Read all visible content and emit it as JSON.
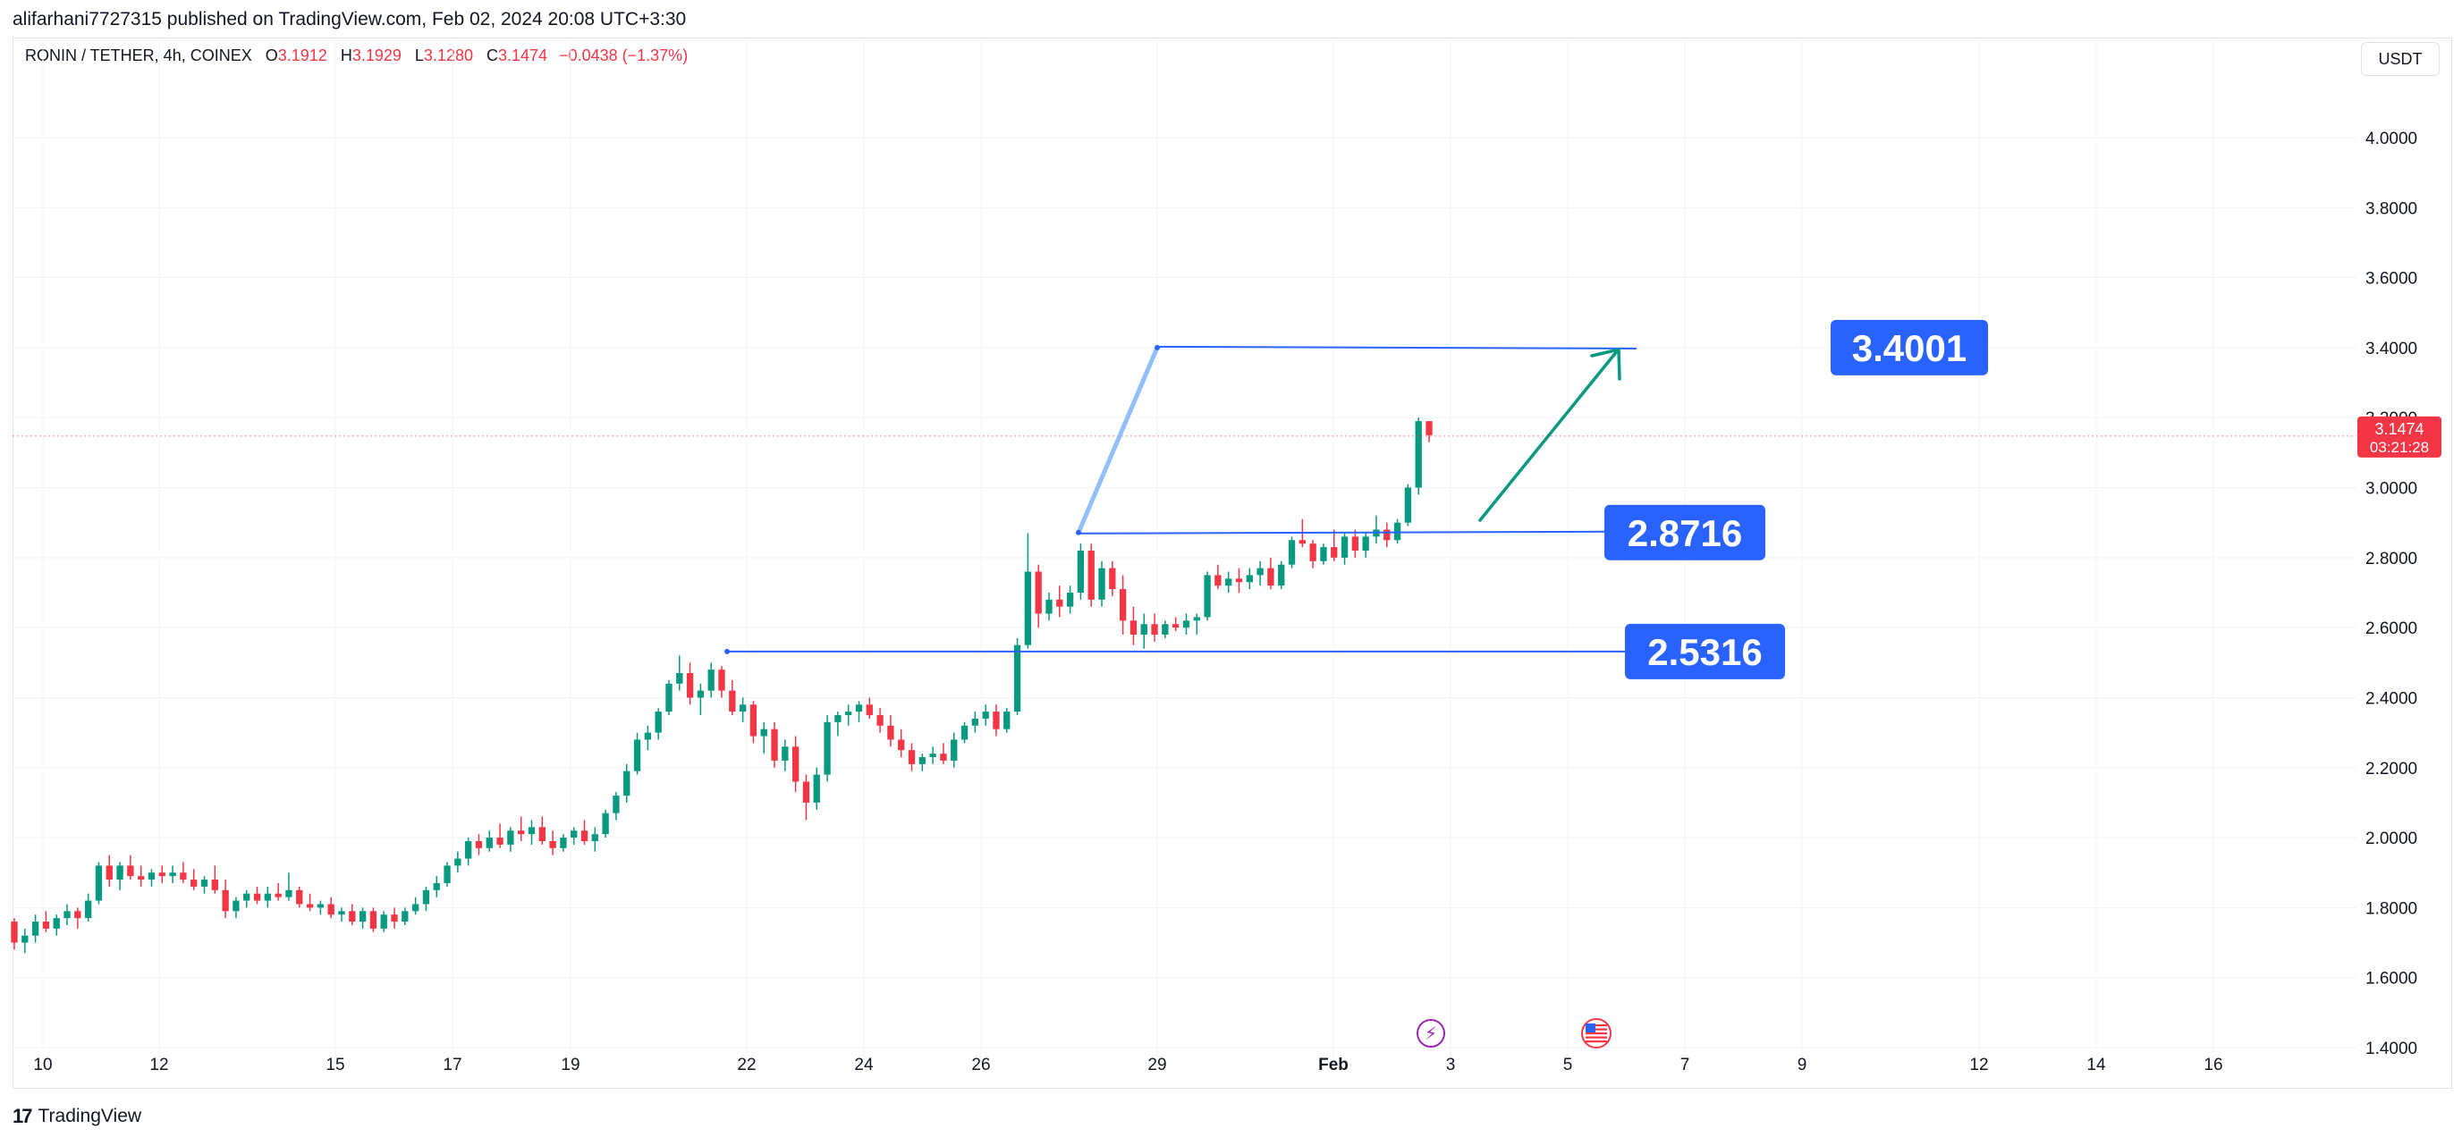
{
  "publisher_line": "alifarhani7727315 published on TradingView.com, Feb 02, 2024 20:08 UTC+3:30",
  "symbol": {
    "name": "RONIN / TETHER, 4h, COINEX",
    "o_label": "O",
    "o_value": "3.1912",
    "h_label": "H",
    "h_value": "3.1929",
    "l_label": "L",
    "l_value": "3.1280",
    "c_label": "C",
    "c_value": "3.1474",
    "change": "−0.0438 (−1.37%)"
  },
  "currency_button": "USDT",
  "footer": {
    "logo_glyph": "17",
    "brand": "TradingView"
  },
  "colors": {
    "up": "#089981",
    "down": "#f23645",
    "line": "#2962ff",
    "label_bg": "#2962ff",
    "arrow": "#089981"
  },
  "chart_data": {
    "type": "candlestick",
    "title": "RONIN / TETHER, 4h, COINEX",
    "x_tick_labels": [
      "10",
      "12",
      "15",
      "17",
      "19",
      "22",
      "24",
      "26",
      "29",
      "Feb",
      "3",
      "5",
      "7",
      "9",
      "12",
      "14",
      "16"
    ],
    "y_tick_labels": [
      "1.4000",
      "1.6000",
      "1.8000",
      "2.0000",
      "2.2000",
      "2.4000",
      "2.6000",
      "2.8000",
      "3.0000",
      "3.2000",
      "3.4000",
      "3.6000",
      "3.8000",
      "4.0000"
    ],
    "ylim": [
      1.4,
      4.1
    ],
    "last_price": {
      "value": "3.1474",
      "countdown": "03:21:28"
    },
    "horizontal_levels": [
      {
        "label": "3.4001",
        "value": 3.4001
      },
      {
        "label": "2.8716",
        "value": 2.8716
      },
      {
        "label": "2.5316",
        "value": 2.5316
      }
    ],
    "event_icons": [
      "lightning-event-icon",
      "us-flag-event-icon"
    ],
    "candles_ohlc": [
      [
        1.76,
        1.77,
        1.68,
        1.7
      ],
      [
        1.7,
        1.74,
        1.67,
        1.72
      ],
      [
        1.72,
        1.78,
        1.7,
        1.76
      ],
      [
        1.76,
        1.79,
        1.73,
        1.74
      ],
      [
        1.74,
        1.78,
        1.72,
        1.77
      ],
      [
        1.77,
        1.81,
        1.75,
        1.79
      ],
      [
        1.79,
        1.8,
        1.74,
        1.77
      ],
      [
        1.77,
        1.84,
        1.76,
        1.82
      ],
      [
        1.82,
        1.93,
        1.81,
        1.92
      ],
      [
        1.92,
        1.95,
        1.86,
        1.88
      ],
      [
        1.88,
        1.93,
        1.85,
        1.92
      ],
      [
        1.92,
        1.95,
        1.88,
        1.89
      ],
      [
        1.89,
        1.92,
        1.86,
        1.88
      ],
      [
        1.88,
        1.91,
        1.86,
        1.9
      ],
      [
        1.9,
        1.92,
        1.87,
        1.89
      ],
      [
        1.89,
        1.92,
        1.87,
        1.9
      ],
      [
        1.9,
        1.93,
        1.87,
        1.88
      ],
      [
        1.88,
        1.91,
        1.85,
        1.86
      ],
      [
        1.86,
        1.89,
        1.84,
        1.88
      ],
      [
        1.88,
        1.92,
        1.84,
        1.85
      ],
      [
        1.85,
        1.88,
        1.77,
        1.79
      ],
      [
        1.79,
        1.83,
        1.77,
        1.82
      ],
      [
        1.82,
        1.85,
        1.8,
        1.84
      ],
      [
        1.84,
        1.86,
        1.81,
        1.82
      ],
      [
        1.82,
        1.86,
        1.8,
        1.84
      ],
      [
        1.84,
        1.87,
        1.82,
        1.83
      ],
      [
        1.83,
        1.9,
        1.82,
        1.85
      ],
      [
        1.85,
        1.86,
        1.8,
        1.81
      ],
      [
        1.81,
        1.84,
        1.79,
        1.8
      ],
      [
        1.8,
        1.82,
        1.78,
        1.81
      ],
      [
        1.81,
        1.83,
        1.77,
        1.78
      ],
      [
        1.78,
        1.8,
        1.76,
        1.79
      ],
      [
        1.79,
        1.81,
        1.75,
        1.76
      ],
      [
        1.76,
        1.8,
        1.74,
        1.79
      ],
      [
        1.79,
        1.8,
        1.73,
        1.74
      ],
      [
        1.74,
        1.79,
        1.73,
        1.78
      ],
      [
        1.78,
        1.8,
        1.74,
        1.76
      ],
      [
        1.76,
        1.8,
        1.75,
        1.79
      ],
      [
        1.79,
        1.83,
        1.78,
        1.81
      ],
      [
        1.81,
        1.86,
        1.79,
        1.85
      ],
      [
        1.85,
        1.89,
        1.83,
        1.87
      ],
      [
        1.87,
        1.93,
        1.86,
        1.92
      ],
      [
        1.92,
        1.96,
        1.9,
        1.94
      ],
      [
        1.94,
        2.0,
        1.92,
        1.99
      ],
      [
        1.99,
        2.01,
        1.95,
        1.97
      ],
      [
        1.97,
        2.02,
        1.96,
        2.0
      ],
      [
        2.0,
        2.04,
        1.97,
        1.98
      ],
      [
        1.98,
        2.03,
        1.96,
        2.02
      ],
      [
        2.02,
        2.06,
        1.99,
        2.01
      ],
      [
        2.01,
        2.05,
        1.98,
        2.03
      ],
      [
        2.03,
        2.06,
        1.98,
        1.99
      ],
      [
        1.99,
        2.02,
        1.95,
        1.97
      ],
      [
        1.97,
        2.01,
        1.96,
        2.0
      ],
      [
        2.0,
        2.03,
        1.98,
        2.02
      ],
      [
        2.02,
        2.05,
        1.98,
        1.99
      ],
      [
        1.99,
        2.03,
        1.96,
        2.01
      ],
      [
        2.01,
        2.08,
        2.0,
        2.07
      ],
      [
        2.07,
        2.13,
        2.05,
        2.12
      ],
      [
        2.12,
        2.21,
        2.1,
        2.19
      ],
      [
        2.19,
        2.3,
        2.18,
        2.28
      ],
      [
        2.28,
        2.32,
        2.25,
        2.3
      ],
      [
        2.3,
        2.37,
        2.28,
        2.36
      ],
      [
        2.36,
        2.45,
        2.35,
        2.44
      ],
      [
        2.44,
        2.52,
        2.42,
        2.47
      ],
      [
        2.47,
        2.5,
        2.38,
        2.4
      ],
      [
        2.4,
        2.44,
        2.35,
        2.42
      ],
      [
        2.42,
        2.5,
        2.4,
        2.48
      ],
      [
        2.48,
        2.49,
        2.4,
        2.42
      ],
      [
        2.42,
        2.45,
        2.35,
        2.36
      ],
      [
        2.36,
        2.4,
        2.33,
        2.38
      ],
      [
        2.38,
        2.39,
        2.27,
        2.29
      ],
      [
        2.29,
        2.33,
        2.24,
        2.31
      ],
      [
        2.31,
        2.33,
        2.2,
        2.22
      ],
      [
        2.22,
        2.28,
        2.19,
        2.26
      ],
      [
        2.26,
        2.29,
        2.13,
        2.16
      ],
      [
        2.16,
        2.18,
        2.05,
        2.1
      ],
      [
        2.1,
        2.2,
        2.08,
        2.18
      ],
      [
        2.18,
        2.35,
        2.16,
        2.33
      ],
      [
        2.33,
        2.36,
        2.29,
        2.35
      ],
      [
        2.35,
        2.38,
        2.32,
        2.36
      ],
      [
        2.36,
        2.39,
        2.33,
        2.38
      ],
      [
        2.38,
        2.4,
        2.34,
        2.35
      ],
      [
        2.35,
        2.37,
        2.3,
        2.32
      ],
      [
        2.32,
        2.35,
        2.26,
        2.28
      ],
      [
        2.28,
        2.31,
        2.23,
        2.25
      ],
      [
        2.25,
        2.27,
        2.19,
        2.21
      ],
      [
        2.21,
        2.24,
        2.19,
        2.23
      ],
      [
        2.23,
        2.26,
        2.21,
        2.24
      ],
      [
        2.24,
        2.27,
        2.21,
        2.22
      ],
      [
        2.22,
        2.3,
        2.2,
        2.28
      ],
      [
        2.28,
        2.33,
        2.27,
        2.32
      ],
      [
        2.32,
        2.36,
        2.3,
        2.34
      ],
      [
        2.34,
        2.38,
        2.32,
        2.36
      ],
      [
        2.36,
        2.38,
        2.29,
        2.31
      ],
      [
        2.31,
        2.37,
        2.3,
        2.36
      ],
      [
        2.36,
        2.57,
        2.35,
        2.55
      ],
      [
        2.55,
        2.87,
        2.54,
        2.76
      ],
      [
        2.76,
        2.78,
        2.6,
        2.64
      ],
      [
        2.64,
        2.7,
        2.62,
        2.68
      ],
      [
        2.68,
        2.72,
        2.63,
        2.66
      ],
      [
        2.66,
        2.72,
        2.64,
        2.7
      ],
      [
        2.7,
        2.84,
        2.68,
        2.82
      ],
      [
        2.82,
        2.84,
        2.66,
        2.68
      ],
      [
        2.68,
        2.79,
        2.66,
        2.77
      ],
      [
        2.77,
        2.79,
        2.69,
        2.71
      ],
      [
        2.71,
        2.75,
        2.58,
        2.62
      ],
      [
        2.62,
        2.66,
        2.55,
        2.58
      ],
      [
        2.58,
        2.64,
        2.54,
        2.61
      ],
      [
        2.61,
        2.64,
        2.56,
        2.58
      ],
      [
        2.58,
        2.62,
        2.57,
        2.61
      ],
      [
        2.61,
        2.63,
        2.59,
        2.6
      ],
      [
        2.6,
        2.64,
        2.58,
        2.62
      ],
      [
        2.62,
        2.64,
        2.58,
        2.63
      ],
      [
        2.63,
        2.76,
        2.62,
        2.75
      ],
      [
        2.75,
        2.78,
        2.71,
        2.72
      ],
      [
        2.72,
        2.76,
        2.7,
        2.74
      ],
      [
        2.74,
        2.77,
        2.7,
        2.73
      ],
      [
        2.73,
        2.77,
        2.71,
        2.75
      ],
      [
        2.75,
        2.79,
        2.72,
        2.77
      ],
      [
        2.77,
        2.8,
        2.71,
        2.72
      ],
      [
        2.72,
        2.79,
        2.71,
        2.78
      ],
      [
        2.78,
        2.86,
        2.77,
        2.85
      ],
      [
        2.85,
        2.91,
        2.83,
        2.84
      ],
      [
        2.84,
        2.85,
        2.77,
        2.79
      ],
      [
        2.79,
        2.84,
        2.78,
        2.83
      ],
      [
        2.83,
        2.88,
        2.79,
        2.8
      ],
      [
        2.8,
        2.87,
        2.78,
        2.86
      ],
      [
        2.86,
        2.88,
        2.8,
        2.82
      ],
      [
        2.82,
        2.87,
        2.8,
        2.86
      ],
      [
        2.86,
        2.92,
        2.84,
        2.88
      ],
      [
        2.88,
        2.9,
        2.83,
        2.85
      ],
      [
        2.85,
        2.91,
        2.84,
        2.9
      ],
      [
        2.9,
        3.01,
        2.89,
        3.0
      ],
      [
        3.0,
        3.2,
        2.98,
        3.19
      ],
      [
        3.19,
        3.19,
        3.13,
        3.15
      ]
    ]
  }
}
